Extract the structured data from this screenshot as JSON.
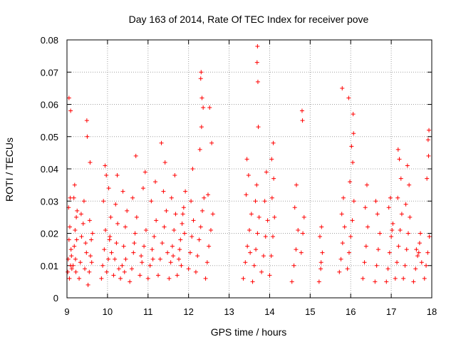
{
  "chart_data": {
    "type": "scatter",
    "title": "Day 163 of 2014, Rate Of TEC Index for receiver pove",
    "xlabel": "GPS time / hours",
    "ylabel": "ROTI / TECUs",
    "xlim": [
      9,
      18
    ],
    "ylim": [
      0,
      0.08
    ],
    "xticks": [
      9,
      10,
      11,
      12,
      13,
      14,
      15,
      16,
      17,
      18
    ],
    "yticks": [
      0,
      0.01,
      0.02,
      0.03,
      0.04,
      0.05,
      0.06,
      0.07,
      0.08
    ],
    "xtick_labels": [
      "9",
      "10",
      "11",
      "12",
      "13",
      "14",
      "15",
      "16",
      "17",
      "18"
    ],
    "ytick_labels": [
      "0",
      "0.01",
      "0.02",
      "0.03",
      "0.04",
      "0.05",
      "0.06",
      "0.07",
      "0.08"
    ],
    "grid": true,
    "marker": "plus",
    "color": "#ff0000",
    "series": [
      {
        "name": "ROTI",
        "x": [
          9.02,
          9.03,
          9.05,
          9.06,
          9.07,
          9.09,
          9.1,
          9.12,
          9.04,
          9.08,
          9.11,
          9.05,
          9.09,
          9.15,
          9.18,
          9.2,
          9.22,
          9.25,
          9.17,
          9.21,
          9.24,
          9.19,
          9.23,
          9.3,
          9.33,
          9.36,
          9.4,
          9.44,
          9.48,
          9.35,
          9.42,
          9.46,
          9.49,
          9.5,
          9.52,
          9.55,
          9.58,
          9.6,
          9.63,
          9.56,
          9.61,
          9.57,
          9.85,
          9.88,
          9.92,
          9.95,
          9.98,
          10.02,
          10.05,
          10.08,
          9.9,
          9.97,
          10.03,
          9.94,
          10.06,
          10.15,
          10.18,
          10.22,
          10.25,
          10.2,
          10.28,
          10.24,
          10.1,
          10.32,
          10.36,
          10.4,
          10.44,
          10.48,
          10.38,
          10.45,
          10.42,
          10.55,
          10.6,
          10.64,
          10.68,
          10.72,
          10.62,
          10.7,
          10.66,
          10.8,
          10.85,
          10.9,
          10.95,
          10.88,
          10.93,
          10.83,
          11.0,
          11.05,
          11.1,
          11.15,
          11.2,
          11.08,
          11.18,
          11.12,
          11.25,
          11.3,
          11.35,
          11.4,
          11.45,
          11.38,
          11.42,
          11.33,
          11.48,
          11.52,
          11.56,
          11.6,
          11.64,
          11.68,
          11.58,
          11.66,
          11.62,
          11.72,
          11.76,
          11.8,
          11.84,
          11.88,
          11.92,
          11.78,
          11.86,
          11.9,
          11.82,
          12.0,
          12.04,
          12.08,
          12.12,
          12.06,
          12.1,
          12.18,
          12.22,
          12.26,
          12.3,
          12.34,
          12.38,
          12.28,
          12.32,
          12.3,
          12.31,
          12.36,
          12.33,
          12.42,
          12.46,
          12.5,
          12.55,
          12.6,
          12.48,
          12.57,
          12.52,
          13.35,
          13.4,
          13.45,
          13.5,
          13.55,
          13.42,
          13.48,
          13.44,
          13.52,
          13.58,
          13.62,
          13.66,
          13.7,
          13.74,
          13.65,
          13.68,
          13.72,
          13.69,
          13.7,
          13.71,
          13.8,
          13.85,
          13.9,
          13.95,
          13.88,
          13.92,
          14.0,
          14.04,
          14.08,
          14.12,
          14.06,
          14.1,
          14.05,
          14.09,
          14.55,
          14.6,
          14.65,
          14.7,
          14.62,
          14.66,
          14.78,
          14.82,
          14.85,
          14.8,
          14.81,
          15.22,
          15.26,
          15.3,
          15.24,
          15.28,
          15.27,
          15.72,
          15.76,
          15.8,
          15.85,
          15.78,
          15.82,
          15.79,
          15.92,
          15.96,
          16.0,
          16.04,
          16.08,
          15.98,
          16.05,
          16.02,
          16.06,
          15.95,
          16.07,
          16.3,
          16.34,
          16.38,
          16.42,
          16.36,
          16.4,
          16.6,
          16.64,
          16.68,
          16.72,
          16.66,
          16.62,
          16.88,
          16.92,
          16.96,
          17.0,
          17.04,
          16.94,
          17.02,
          16.98,
          17.1,
          17.14,
          17.18,
          17.22,
          17.26,
          17.16,
          17.24,
          17.2,
          17.17,
          17.3,
          17.34,
          17.38,
          17.42,
          17.46,
          17.36,
          17.44,
          17.4,
          17.55,
          17.6,
          17.65,
          17.7,
          17.75,
          17.62,
          17.72,
          17.68,
          17.82,
          17.86,
          17.9,
          17.94,
          17.88,
          17.92,
          17.91,
          17.93
        ],
        "y": [
          0.008,
          0.012,
          0.018,
          0.006,
          0.022,
          0.01,
          0.015,
          0.009,
          0.028,
          0.031,
          0.013,
          0.062,
          0.058,
          0.01,
          0.016,
          0.021,
          0.008,
          0.027,
          0.031,
          0.012,
          0.018,
          0.035,
          0.025,
          0.006,
          0.011,
          0.019,
          0.023,
          0.009,
          0.014,
          0.026,
          0.03,
          0.017,
          0.055,
          0.05,
          0.004,
          0.008,
          0.013,
          0.018,
          0.02,
          0.024,
          0.011,
          0.042,
          0.006,
          0.01,
          0.015,
          0.021,
          0.008,
          0.012,
          0.018,
          0.025,
          0.03,
          0.038,
          0.034,
          0.041,
          0.019,
          0.007,
          0.012,
          0.017,
          0.023,
          0.029,
          0.009,
          0.038,
          0.014,
          0.006,
          0.01,
          0.016,
          0.022,
          0.027,
          0.033,
          0.012,
          0.008,
          0.005,
          0.009,
          0.014,
          0.02,
          0.025,
          0.031,
          0.044,
          0.017,
          0.007,
          0.011,
          0.016,
          0.021,
          0.034,
          0.039,
          0.013,
          0.006,
          0.01,
          0.015,
          0.019,
          0.024,
          0.03,
          0.036,
          0.012,
          0.007,
          0.012,
          0.017,
          0.022,
          0.027,
          0.033,
          0.042,
          0.048,
          0.014,
          0.006,
          0.011,
          0.016,
          0.021,
          0.026,
          0.031,
          0.038,
          0.013,
          0.007,
          0.012,
          0.018,
          0.023,
          0.028,
          0.033,
          0.015,
          0.026,
          0.02,
          0.01,
          0.009,
          0.014,
          0.019,
          0.024,
          0.03,
          0.04,
          0.008,
          0.013,
          0.018,
          0.022,
          0.027,
          0.031,
          0.046,
          0.053,
          0.068,
          0.07,
          0.059,
          0.062,
          0.006,
          0.011,
          0.016,
          0.021,
          0.026,
          0.032,
          0.048,
          0.059,
          0.006,
          0.011,
          0.016,
          0.021,
          0.026,
          0.032,
          0.038,
          0.043,
          0.014,
          0.005,
          0.01,
          0.015,
          0.02,
          0.025,
          0.03,
          0.035,
          0.053,
          0.073,
          0.078,
          0.067,
          0.008,
          0.013,
          0.019,
          0.024,
          0.03,
          0.039,
          0.007,
          0.013,
          0.019,
          0.025,
          0.031,
          0.037,
          0.043,
          0.048,
          0.005,
          0.01,
          0.015,
          0.021,
          0.028,
          0.035,
          0.014,
          0.02,
          0.025,
          0.058,
          0.055,
          0.005,
          0.009,
          0.014,
          0.019,
          0.022,
          0.011,
          0.008,
          0.012,
          0.017,
          0.022,
          0.026,
          0.031,
          0.065,
          0.009,
          0.014,
          0.019,
          0.024,
          0.03,
          0.036,
          0.042,
          0.047,
          0.057,
          0.062,
          0.051,
          0.006,
          0.011,
          0.016,
          0.022,
          0.028,
          0.035,
          0.005,
          0.01,
          0.015,
          0.02,
          0.026,
          0.03,
          0.005,
          0.009,
          0.014,
          0.019,
          0.023,
          0.028,
          0.021,
          0.031,
          0.006,
          0.011,
          0.016,
          0.021,
          0.026,
          0.031,
          0.037,
          0.043,
          0.046,
          0.006,
          0.01,
          0.015,
          0.02,
          0.025,
          0.029,
          0.035,
          0.041,
          0.005,
          0.009,
          0.013,
          0.017,
          0.011,
          0.015,
          0.02,
          0.014,
          0.006,
          0.01,
          0.014,
          0.019,
          0.037,
          0.044,
          0.049,
          0.052
        ]
      }
    ]
  }
}
